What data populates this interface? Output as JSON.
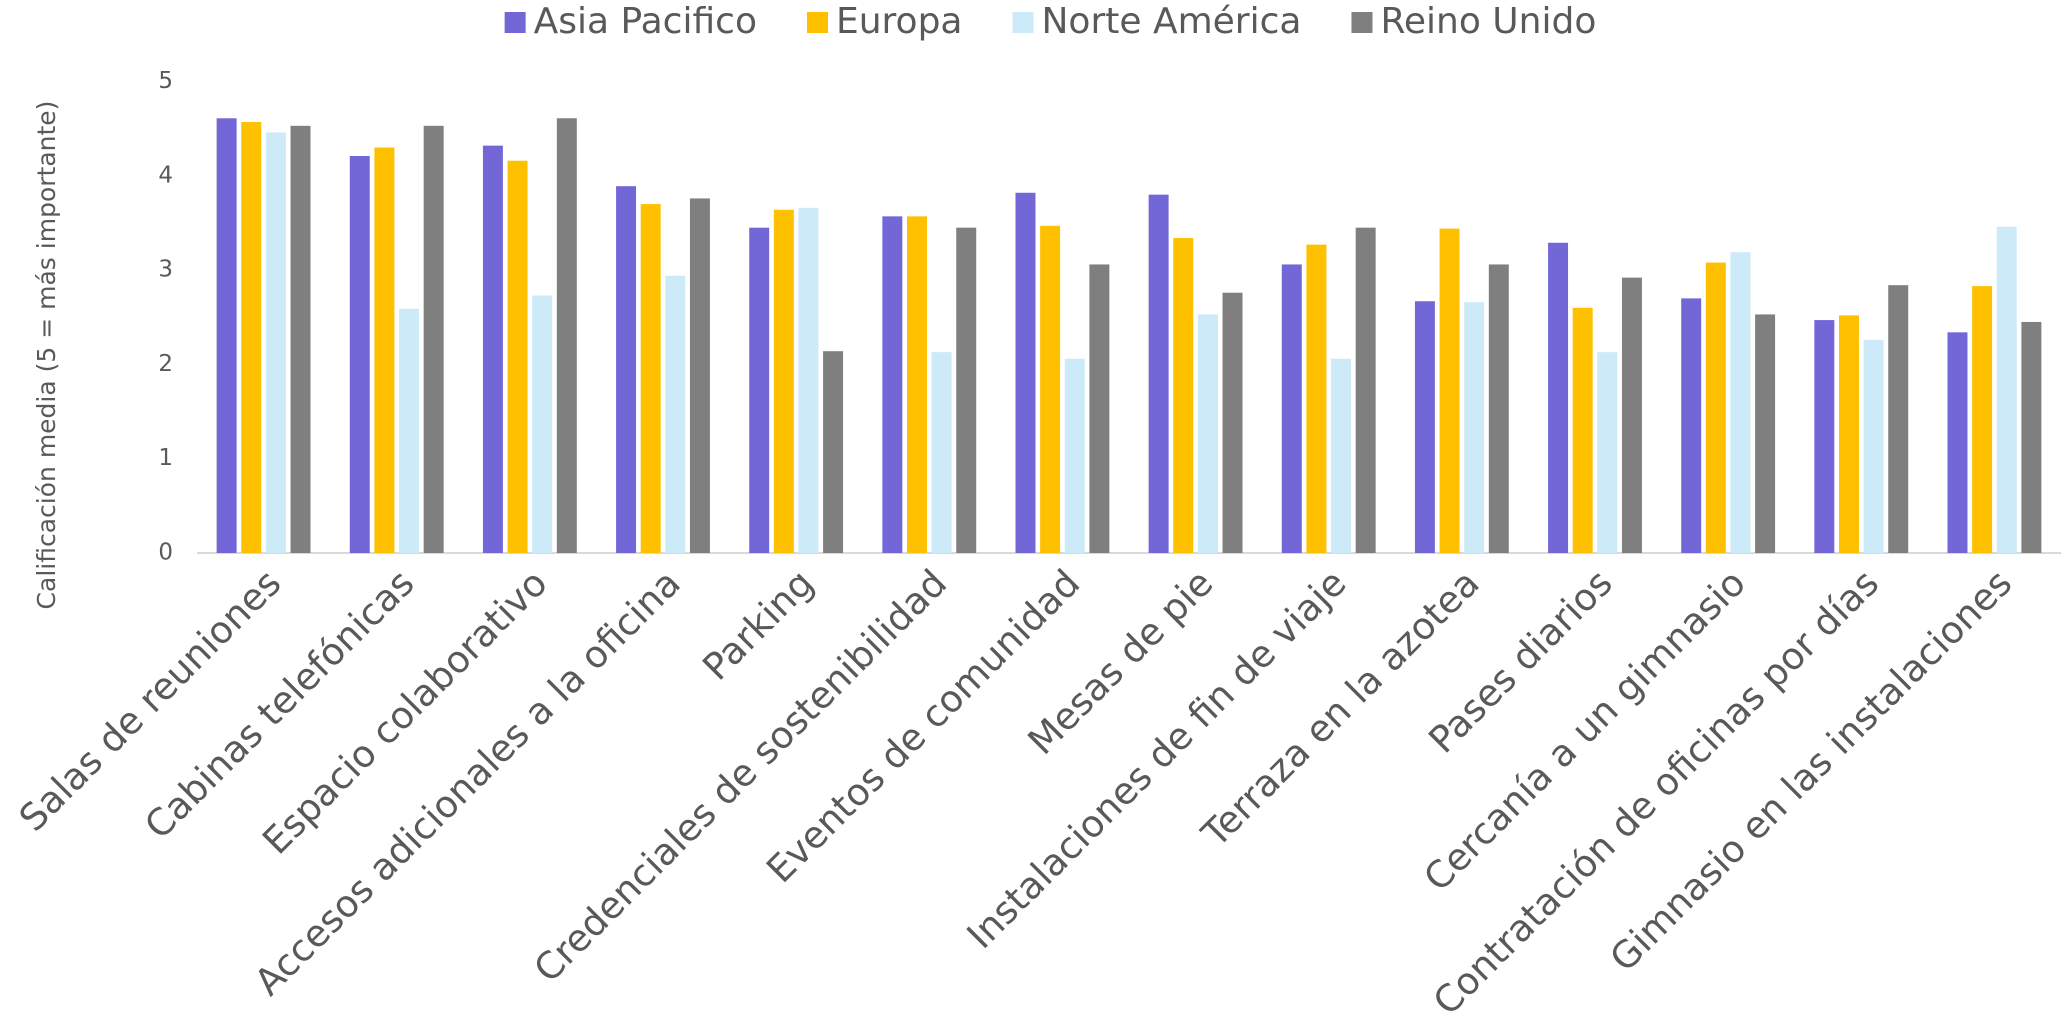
{
  "chart_data": {
    "type": "bar",
    "y_label": "Calificación media (5 = más importante)",
    "categories": [
      "Salas de reuniones",
      "Cabinas telefónicas",
      "Espacio colaborativo",
      "Accesos adicionales a la oficina",
      "Parking",
      "Credenciales de sostenibilidad",
      "Eventos de comunidad",
      "Mesas de pie",
      "Instalaciones de fin de viaje",
      "Terraza en la azotea",
      "Pases diarios",
      "Cercanía a un gimnasio",
      "Contratación de oficinas por días",
      "Gimnasio en las instalaciones"
    ],
    "series": [
      {
        "name": "Asia Pacifico",
        "color": "#7367d8",
        "values": [
          4.61,
          4.21,
          4.32,
          3.89,
          3.45,
          3.57,
          3.82,
          3.8,
          3.06,
          2.67,
          3.29,
          2.7,
          2.47,
          2.34
        ]
      },
      {
        "name": "Europa",
        "color": "#ffc000",
        "values": [
          4.57,
          4.3,
          4.16,
          3.7,
          3.64,
          3.57,
          3.47,
          3.34,
          3.27,
          3.44,
          2.6,
          3.08,
          2.52,
          2.83
        ]
      },
      {
        "name": "Norte América",
        "color": "#cdeaf9",
        "values": [
          4.46,
          2.59,
          2.73,
          2.94,
          3.66,
          2.13,
          2.06,
          2.53,
          2.06,
          2.66,
          2.13,
          3.19,
          2.26,
          3.46
        ]
      },
      {
        "name": "Reino Unido",
        "color": "#7f7f7f",
        "values": [
          4.53,
          4.53,
          4.61,
          3.76,
          2.14,
          3.45,
          3.06,
          2.76,
          3.45,
          3.06,
          2.92,
          2.53,
          2.84,
          2.45
        ]
      }
    ],
    "ylim": [
      0,
      5
    ],
    "yticks": [
      0,
      1,
      2,
      3,
      4,
      5
    ],
    "grid": false,
    "legend": "top"
  }
}
